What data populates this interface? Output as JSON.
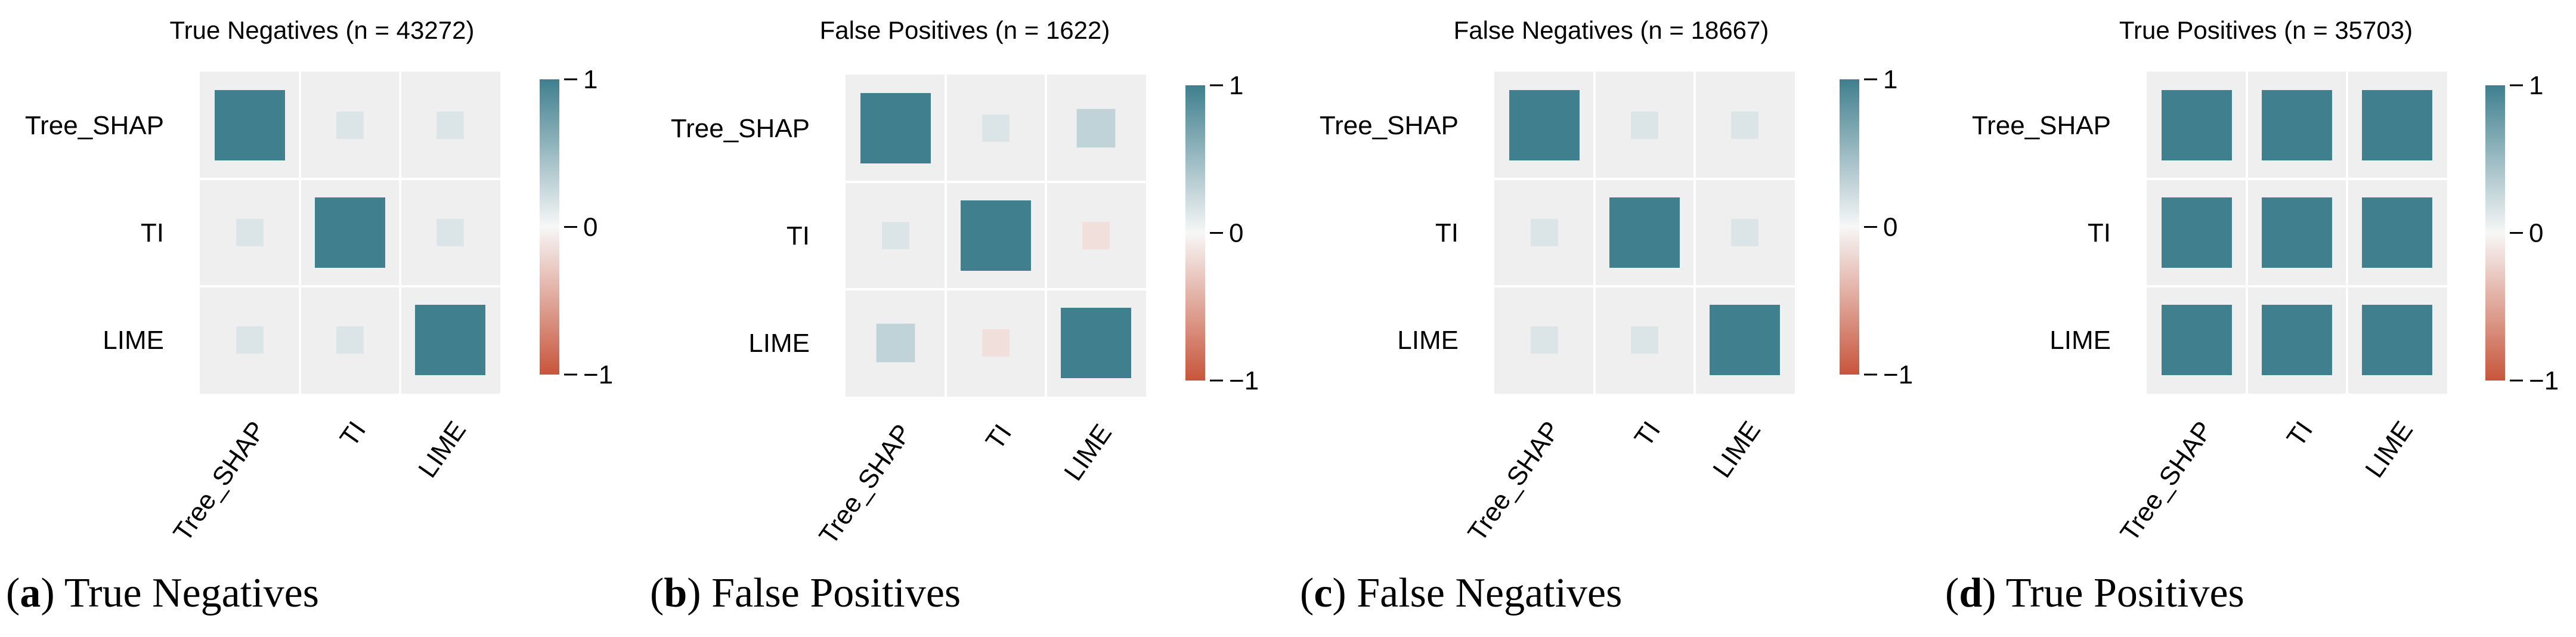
{
  "colors": {
    "positive": "#3f7f8e",
    "neutral": "#f7f7f7",
    "negative": "#c8553b",
    "cell_background": "#efefef"
  },
  "chart_data": [
    {
      "type": "heatmap",
      "title": "True Negatives (n = 43272)",
      "caption_letter": "a",
      "caption_text": "True Negatives",
      "rows": [
        "Tree_SHAP",
        "TI",
        "LIME"
      ],
      "columns": [
        "Tree_SHAP",
        "TI",
        "LIME"
      ],
      "values": [
        [
          1.0,
          0.15,
          0.15
        ],
        [
          0.15,
          1.0,
          0.15
        ],
        [
          0.15,
          0.15,
          1.0
        ]
      ],
      "colorbar": {
        "range": [
          -1,
          1
        ],
        "ticks": [
          1,
          0,
          -1
        ],
        "tick_labels": [
          "1",
          "0",
          "−1"
        ]
      }
    },
    {
      "type": "heatmap",
      "title": "False Positives (n = 1622)",
      "caption_letter": "b",
      "caption_text": "False Positives",
      "rows": [
        "Tree_SHAP",
        "TI",
        "LIME"
      ],
      "columns": [
        "Tree_SHAP",
        "TI",
        "LIME"
      ],
      "values": [
        [
          1.0,
          0.15,
          0.3
        ],
        [
          0.15,
          1.0,
          -0.15
        ],
        [
          0.3,
          -0.15,
          1.0
        ]
      ],
      "colorbar": {
        "range": [
          -1,
          1
        ],
        "ticks": [
          1,
          0,
          -1
        ],
        "tick_labels": [
          "1",
          "0",
          "−1"
        ]
      }
    },
    {
      "type": "heatmap",
      "title": "False Negatives (n = 18667)",
      "caption_letter": "c",
      "caption_text": "False Negatives",
      "rows": [
        "Tree_SHAP",
        "TI",
        "LIME"
      ],
      "columns": [
        "Tree_SHAP",
        "TI",
        "LIME"
      ],
      "values": [
        [
          1.0,
          0.15,
          0.15
        ],
        [
          0.15,
          1.0,
          0.15
        ],
        [
          0.15,
          0.15,
          1.0
        ]
      ],
      "colorbar": {
        "range": [
          -1,
          1
        ],
        "ticks": [
          1,
          0,
          -1
        ],
        "tick_labels": [
          "1",
          "0",
          "−1"
        ]
      }
    },
    {
      "type": "heatmap",
      "title": "True Positives (n = 35703)",
      "caption_letter": "d",
      "caption_text": "True Positives",
      "rows": [
        "Tree_SHAP",
        "TI",
        "LIME"
      ],
      "columns": [
        "Tree_SHAP",
        "TI",
        "LIME"
      ],
      "values": [
        [
          1.0,
          1.0,
          1.0
        ],
        [
          1.0,
          1.0,
          1.0
        ],
        [
          1.0,
          1.0,
          1.0
        ]
      ],
      "colorbar": {
        "range": [
          -1,
          1
        ],
        "ticks": [
          1,
          0,
          -1
        ],
        "tick_labels": [
          "1",
          "0",
          "−1"
        ]
      }
    }
  ]
}
